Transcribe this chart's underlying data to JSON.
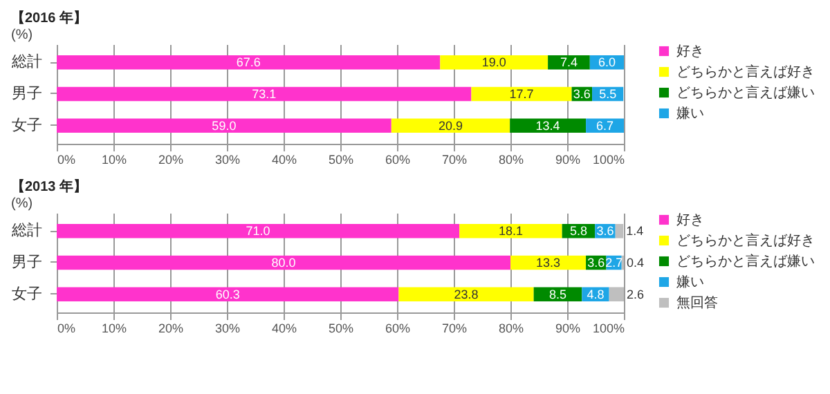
{
  "chart_data": [
    {
      "type": "bar",
      "orientation": "horizontal",
      "stacked": true,
      "title": "【2016 年】",
      "subtitle": "(%)",
      "categories": [
        "総計",
        "男子",
        "女子"
      ],
      "series": [
        {
          "name": "好き",
          "color": "#ff33cc",
          "values": [
            67.6,
            73.1,
            59.0
          ],
          "value_labels": [
            "67.6",
            "73.1",
            "59.0"
          ]
        },
        {
          "name": "どちらかと言えば好き",
          "color": "#ffff00",
          "values": [
            19.0,
            17.7,
            20.9
          ],
          "value_labels": [
            "19.0",
            "17.7",
            "20.9"
          ]
        },
        {
          "name": "どちらかと言えば嫌い",
          "color": "#008a00",
          "values": [
            7.4,
            3.6,
            13.4
          ],
          "value_labels": [
            "7.4",
            "3.6",
            "13.4"
          ]
        },
        {
          "name": "嫌い",
          "color": "#1ea6e6",
          "values": [
            6.0,
            5.5,
            6.7
          ],
          "value_labels": [
            "6.0",
            "5.5",
            "6.7"
          ]
        }
      ],
      "xlim": [
        0,
        100
      ],
      "xticks": [
        {
          "value": 0,
          "label": "0%"
        },
        {
          "value": 10,
          "label": "10%"
        },
        {
          "value": 20,
          "label": "20%"
        },
        {
          "value": 30,
          "label": "30%"
        },
        {
          "value": 40,
          "label": "40%"
        },
        {
          "value": 50,
          "label": "50%"
        },
        {
          "value": 60,
          "label": "60%"
        },
        {
          "value": 70,
          "label": "70%"
        },
        {
          "value": 80,
          "label": "80%"
        },
        {
          "value": 90,
          "label": "90%"
        },
        {
          "value": 100,
          "label": "100%"
        }
      ],
      "grid": "x",
      "legend": "right"
    },
    {
      "type": "bar",
      "orientation": "horizontal",
      "stacked": true,
      "title": "【2013 年】",
      "subtitle": "(%)",
      "categories": [
        "総計",
        "男子",
        "女子"
      ],
      "series": [
        {
          "name": "好き",
          "color": "#ff33cc",
          "values": [
            71.0,
            80.0,
            60.3
          ],
          "value_labels": [
            "71.0",
            "80.0",
            "60.3"
          ]
        },
        {
          "name": "どちらかと言えば好き",
          "color": "#ffff00",
          "values": [
            18.1,
            13.3,
            23.8
          ],
          "value_labels": [
            "18.1",
            "13.3",
            "23.8"
          ]
        },
        {
          "name": "どちらかと言えば嫌い",
          "color": "#008a00",
          "values": [
            5.8,
            3.6,
            8.5
          ],
          "value_labels": [
            "5.8",
            "3.6",
            "8.5"
          ]
        },
        {
          "name": "嫌い",
          "color": "#1ea6e6",
          "values": [
            3.6,
            2.7,
            4.8
          ],
          "value_labels": [
            "3.6",
            "2.7",
            "4.8"
          ]
        },
        {
          "name": "無回答",
          "color": "#bfbfbf",
          "values": [
            1.4,
            0.4,
            2.6
          ],
          "value_labels": [
            "1.4",
            "0.4",
            "2.6"
          ]
        }
      ],
      "xlim": [
        0,
        100
      ],
      "xticks": [
        {
          "value": 0,
          "label": "0%"
        },
        {
          "value": 10,
          "label": "10%"
        },
        {
          "value": 20,
          "label": "20%"
        },
        {
          "value": 30,
          "label": "30%"
        },
        {
          "value": 40,
          "label": "40%"
        },
        {
          "value": 50,
          "label": "50%"
        },
        {
          "value": 60,
          "label": "60%"
        },
        {
          "value": 70,
          "label": "70%"
        },
        {
          "value": 80,
          "label": "80%"
        },
        {
          "value": 90,
          "label": "90%"
        },
        {
          "value": 100,
          "label": "100%"
        }
      ],
      "grid": "x",
      "legend": "right"
    }
  ]
}
